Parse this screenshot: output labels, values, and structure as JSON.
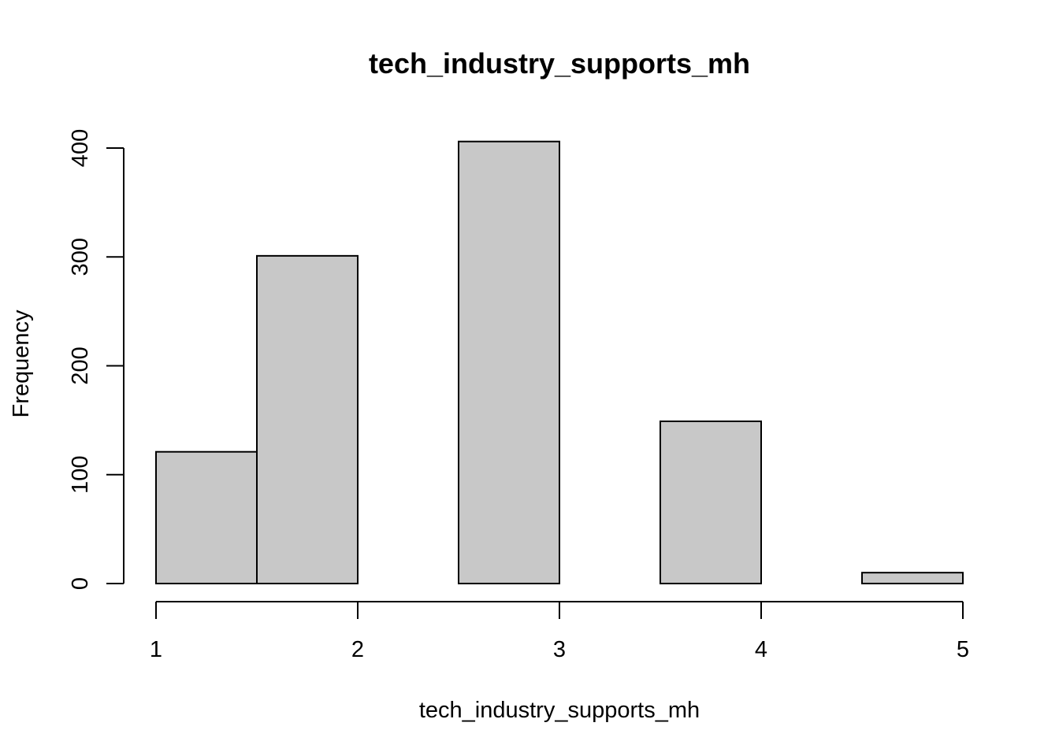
{
  "chart_data": {
    "type": "bar",
    "title": "tech_industry_supports_mh",
    "xlabel": "tech_industry_supports_mh",
    "ylabel": "Frequency",
    "bins": [
      {
        "start": 1.0,
        "end": 1.5,
        "value": 121
      },
      {
        "start": 1.5,
        "end": 2.0,
        "value": 301
      },
      {
        "start": 2.0,
        "end": 2.5,
        "value": 0
      },
      {
        "start": 2.5,
        "end": 3.0,
        "value": 406
      },
      {
        "start": 3.0,
        "end": 3.5,
        "value": 0
      },
      {
        "start": 3.5,
        "end": 4.0,
        "value": 149
      },
      {
        "start": 4.0,
        "end": 4.5,
        "value": 0
      },
      {
        "start": 4.5,
        "end": 5.0,
        "value": 10
      }
    ],
    "xlim": [
      1,
      5
    ],
    "ylim": [
      0,
      400
    ],
    "x_ticks": [
      "1",
      "2",
      "3",
      "4",
      "5"
    ],
    "y_ticks": [
      "0",
      "100",
      "200",
      "300",
      "400"
    ],
    "colors": {
      "bar_fill": "#c8c8c8",
      "bar_stroke": "#000000"
    },
    "grid": false
  }
}
